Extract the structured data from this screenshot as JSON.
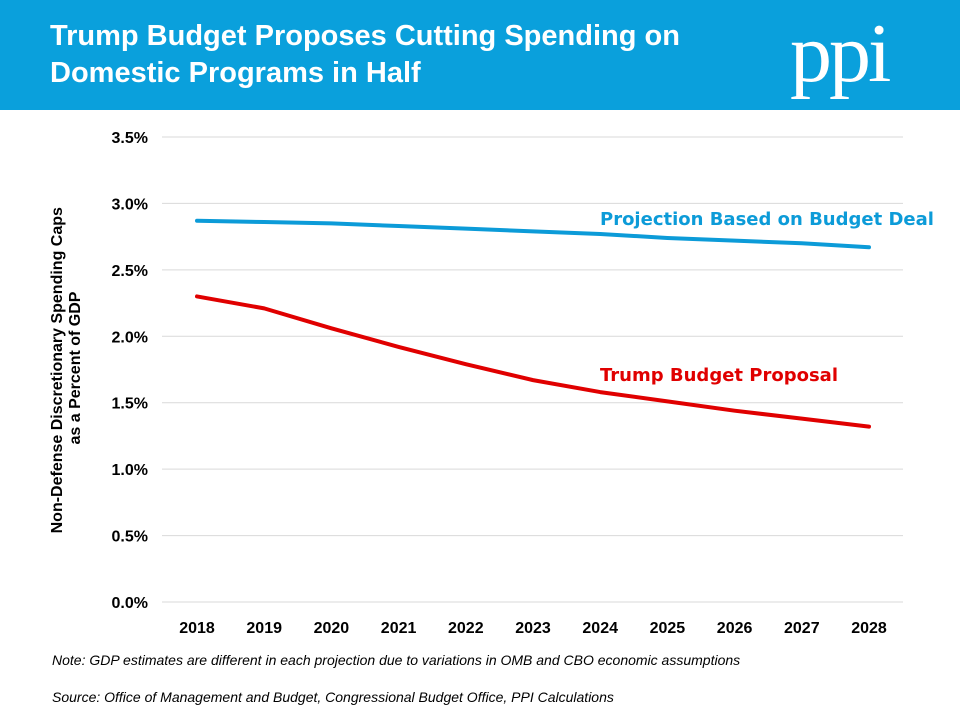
{
  "header": {
    "title": "Trump Budget Proposes Cutting Spending on Domestic Programs in Half",
    "logo": "ppi"
  },
  "colors": {
    "header_bg": "#0aa0dc",
    "series_budget_deal": "#0c9bd8",
    "series_trump": "#e00000",
    "gridline": "#d9d9d9"
  },
  "chart_data": {
    "type": "line",
    "title": "",
    "ylabel_lines": [
      "Non-Defense Discretionary Spending Caps",
      "as a Percent of GDP"
    ],
    "xlabel": "",
    "x": [
      "2018",
      "2019",
      "2020",
      "2021",
      "2022",
      "2023",
      "2024",
      "2025",
      "2026",
      "2027",
      "2028"
    ],
    "ylim": [
      0,
      3.5
    ],
    "yticks": [
      0,
      0.5,
      1.0,
      1.5,
      2.0,
      2.5,
      3.0,
      3.5
    ],
    "ytick_labels": [
      "0.0%",
      "0.5%",
      "1.0%",
      "1.5%",
      "2.0%",
      "2.5%",
      "3.0%",
      "3.5%"
    ],
    "grid": true,
    "legend": "none",
    "series": [
      {
        "name": "Projection Based on Budget Deal",
        "values": [
          2.87,
          2.86,
          2.85,
          2.83,
          2.81,
          2.79,
          2.77,
          2.74,
          2.72,
          2.7,
          2.67
        ]
      },
      {
        "name": "Trump Budget Proposal",
        "values": [
          2.3,
          2.21,
          2.06,
          1.92,
          1.79,
          1.67,
          1.58,
          1.51,
          1.44,
          1.38,
          1.32
        ]
      }
    ]
  },
  "notes": {
    "note": "Note: GDP estimates are different in each projection due to variations in OMB and CBO economic assumptions",
    "source": "Source: Office of Management and Budget, Congressional Budget Office, PPI Calculations"
  }
}
